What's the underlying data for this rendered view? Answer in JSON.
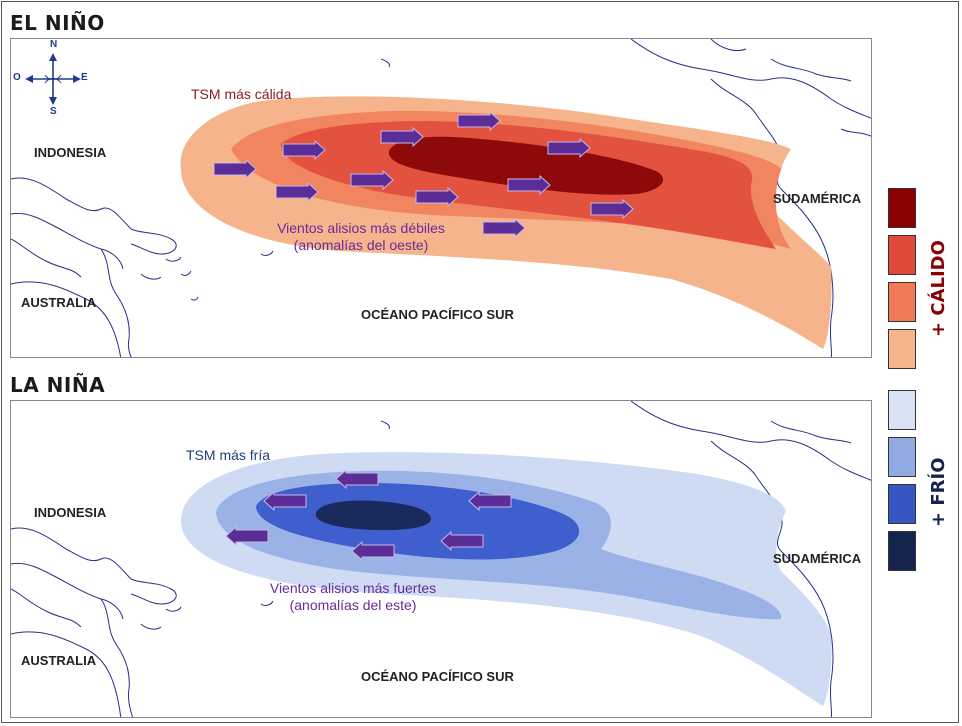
{
  "el_nino": {
    "title": "EL NIÑO",
    "label_indonesia": "INDONESIA",
    "label_australia": "AUSTRALIA",
    "label_sudamerica": "SUDAMÉRICA",
    "label_ocean": "OCÉANO PACÍFICO SUR",
    "sst_note": "TSM más cálida",
    "winds_note_line1": "Vientos alisios más débiles",
    "winds_note_line2": "(anomalías del oeste)",
    "wind_direction": "east"
  },
  "la_nina": {
    "title": "LA NIÑA",
    "label_indonesia": "INDONESIA",
    "label_australia": "AUSTRALIA",
    "label_sudamerica": "SUDAMÉRICA",
    "label_ocean": "OCÉANO PACÍFICO SUR",
    "sst_note": "TSM más fría",
    "winds_note_line1": "Vientos alisios más fuertes",
    "winds_note_line2": "(anomalías del este)",
    "wind_direction": "west"
  },
  "compass": {
    "n": "N",
    "s": "S",
    "e": "E",
    "o": "O"
  },
  "legend": {
    "warm_label": "+ CÁLIDO",
    "cold_label": "+ FRÍO",
    "warm_colors": [
      "#8b0000",
      "#e04a3a",
      "#f07a56",
      "#f5b48c"
    ],
    "cold_colors": [
      "#d8e2f4",
      "#8fabe2",
      "#3557c3",
      "#14244e"
    ]
  },
  "colors": {
    "warm": [
      "#f5b48c",
      "#f08560",
      "#e3513f",
      "#8e0a0a"
    ],
    "cold": [
      "#cfdbf3",
      "#9ab2e6",
      "#3e5fcd",
      "#1a2a5c"
    ],
    "arrow": "#5b2d96",
    "note_warm": "#8b1a1a",
    "note_cold": "#1f3f7a",
    "note_winds": "#6a2a9a"
  }
}
